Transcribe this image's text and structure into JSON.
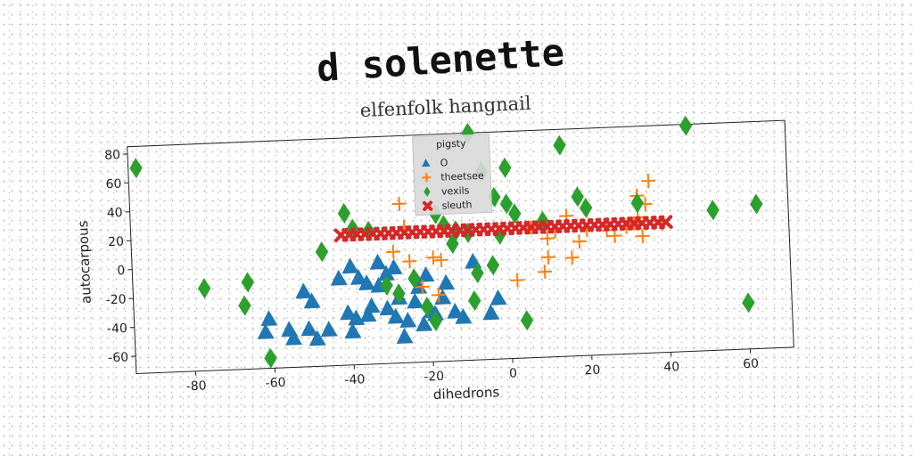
{
  "chart_data": {
    "type": "scatter",
    "suptitle": "d solenette",
    "title": "elfenfolk hangnail",
    "xlabel": "dihedrons",
    "ylabel": "autocarpous",
    "xlim": [
      -95,
      71
    ],
    "ylim": [
      -72,
      85
    ],
    "xticks": [
      -80,
      -60,
      -40,
      -20,
      0,
      20,
      40,
      60
    ],
    "yticks": [
      -60,
      -40,
      -20,
      0,
      20,
      40,
      60,
      80
    ],
    "grid": false,
    "legend": {
      "title": "pigsty",
      "placement": "top-center"
    },
    "series": [
      {
        "name": "O",
        "color": "#1f77b4",
        "marker": "triangle",
        "points": [
          [
            -61,
            -38
          ],
          [
            -62,
            -47
          ],
          [
            -56,
            -46
          ],
          [
            -55,
            -52
          ],
          [
            -51,
            -46
          ],
          [
            -49,
            -53
          ],
          [
            -46,
            -47
          ],
          [
            -52,
            -20
          ],
          [
            -50,
            -27
          ],
          [
            -43,
            -12
          ],
          [
            -40,
            -4
          ],
          [
            -38,
            -12
          ],
          [
            -36,
            -16
          ],
          [
            -41,
            -36
          ],
          [
            -40,
            -49
          ],
          [
            -39,
            -40
          ],
          [
            -36,
            -38
          ],
          [
            -35,
            -32
          ],
          [
            -33,
            -18
          ],
          [
            -31,
            -10
          ],
          [
            -31,
            -34
          ],
          [
            -28,
            -27
          ],
          [
            -29,
            -40
          ],
          [
            -27,
            -54
          ],
          [
            -26,
            -43
          ],
          [
            -24,
            -30
          ],
          [
            -23,
            -20
          ],
          [
            -21,
            -12
          ],
          [
            -22,
            -46
          ],
          [
            -19,
            -39
          ],
          [
            -17,
            -28
          ],
          [
            -16,
            -18
          ],
          [
            -14,
            -38
          ],
          [
            -12,
            -42
          ],
          [
            -9,
            -4
          ],
          [
            -3,
            -30
          ],
          [
            -5,
            -40
          ],
          [
            -33,
            -2
          ],
          [
            -29,
            -6
          ],
          [
            -20,
            -37
          ]
        ]
      },
      {
        "name": "theetsee",
        "color": "#ff7f0e",
        "marker": "plus",
        "points": [
          [
            -27,
            38
          ],
          [
            -26,
            22
          ],
          [
            -29,
            5
          ],
          [
            -25,
            -2
          ],
          [
            -22,
            -20
          ],
          [
            -19,
            0
          ],
          [
            -17,
            -2
          ],
          [
            -18,
            -26
          ],
          [
            2,
            -18
          ],
          [
            9,
            -13
          ],
          [
            10,
            -3
          ],
          [
            10,
            10
          ],
          [
            12,
            15
          ],
          [
            15,
            25
          ],
          [
            16,
            -4
          ],
          [
            18,
            7
          ],
          [
            25,
            14
          ],
          [
            27,
            10
          ],
          [
            30,
            16
          ],
          [
            32,
            18
          ],
          [
            33,
            37
          ],
          [
            33,
            22
          ],
          [
            34,
            9
          ],
          [
            35,
            31
          ],
          [
            36,
            47
          ],
          [
            39,
            17
          ],
          [
            6,
            18
          ],
          [
            20,
            15
          ]
        ]
      },
      {
        "name": "vexils",
        "color": "#2ca02c",
        "marker": "diamond",
        "points": [
          [
            -93,
            70
          ],
          [
            -77,
            -15
          ],
          [
            -66,
            -12
          ],
          [
            -67,
            -28
          ],
          [
            -61,
            -65
          ],
          [
            -47,
            7
          ],
          [
            -41,
            33
          ],
          [
            -39,
            22
          ],
          [
            -35,
            20
          ],
          [
            -31,
            -18
          ],
          [
            -28,
            -24
          ],
          [
            -24,
            -14
          ],
          [
            -21,
            -34
          ],
          [
            -19,
            -44
          ],
          [
            -18,
            30
          ],
          [
            -16,
            22
          ],
          [
            -14,
            9
          ],
          [
            -10,
            16
          ],
          [
            -8,
            -12
          ],
          [
            -9,
            85
          ],
          [
            -6,
            58
          ],
          [
            -3,
            40
          ],
          [
            0,
            35
          ],
          [
            2,
            28
          ],
          [
            -2,
            14
          ],
          [
            -4,
            -7
          ],
          [
            4,
            -46
          ],
          [
            9,
            22
          ],
          [
            14,
            74
          ],
          [
            18,
            38
          ],
          [
            20,
            30
          ],
          [
            33,
            32
          ],
          [
            46,
            84
          ],
          [
            52,
            25
          ],
          [
            60,
            -40
          ],
          [
            63,
            28
          ],
          [
            0,
            60
          ],
          [
            -13,
            18
          ],
          [
            -9,
            -31
          ]
        ]
      },
      {
        "name": "sleuth",
        "color": "#d62728",
        "marker": "x",
        "points": [
          [
            -42,
            18
          ],
          [
            -40,
            18
          ],
          [
            -38,
            18
          ],
          [
            -36,
            18
          ],
          [
            -34,
            18
          ],
          [
            -32,
            18
          ],
          [
            -30,
            18
          ],
          [
            -28,
            18
          ],
          [
            -26,
            18
          ],
          [
            -24,
            18
          ],
          [
            -22,
            18
          ],
          [
            -20,
            18
          ],
          [
            -18,
            18
          ],
          [
            -16,
            18
          ],
          [
            -14,
            18
          ],
          [
            -12,
            18
          ],
          [
            -10,
            18
          ],
          [
            -8,
            18
          ],
          [
            -6,
            18
          ],
          [
            -4,
            18
          ],
          [
            -2,
            18
          ],
          [
            0,
            18
          ],
          [
            2,
            18
          ],
          [
            4,
            18
          ],
          [
            6,
            18
          ],
          [
            8,
            18
          ],
          [
            10,
            18
          ],
          [
            12,
            18
          ],
          [
            14,
            18
          ],
          [
            16,
            18
          ],
          [
            18,
            18
          ],
          [
            20,
            18
          ],
          [
            22,
            18
          ],
          [
            24,
            18
          ],
          [
            26,
            18
          ],
          [
            28,
            18
          ],
          [
            30,
            18
          ],
          [
            32,
            18
          ],
          [
            34,
            18
          ],
          [
            36,
            18
          ],
          [
            38,
            18
          ],
          [
            40,
            18
          ]
        ]
      }
    ]
  }
}
